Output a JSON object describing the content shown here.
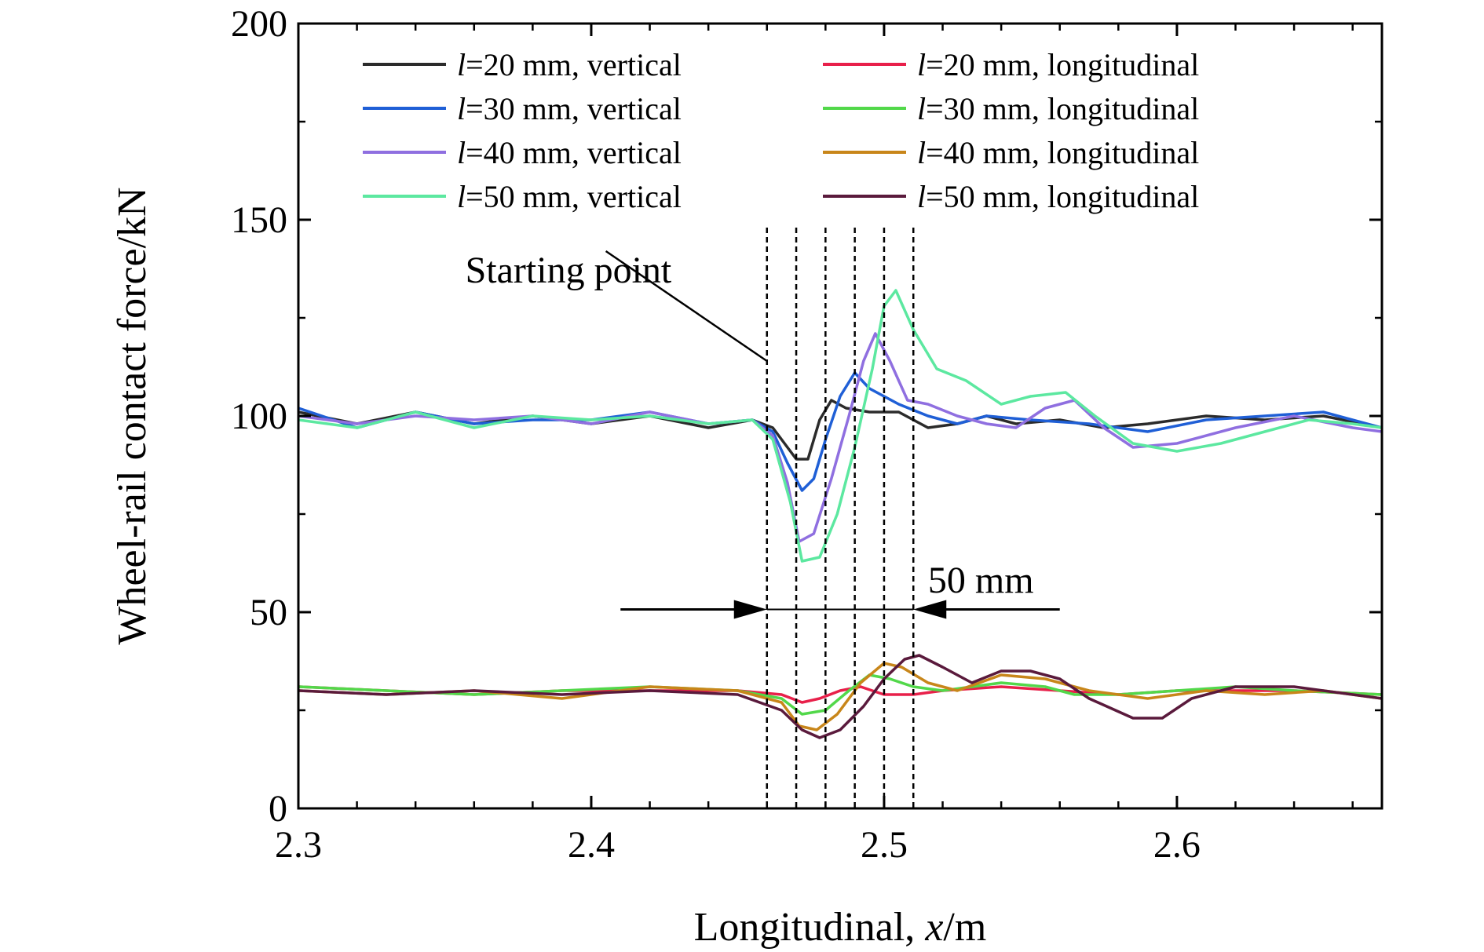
{
  "chart_data": {
    "type": "line",
    "xlabel_prefix": "Longitudinal, ",
    "xlabel_var": "x",
    "xlabel_suffix": "/m",
    "ylabel": "Wheel-rail contact force/kN",
    "xlim": [
      2.3,
      2.67
    ],
    "ylim": [
      0,
      200
    ],
    "xticks": [
      2.3,
      2.4,
      2.5,
      2.6
    ],
    "xtick_labels": [
      "2.3",
      "2.4",
      "2.5",
      "2.6"
    ],
    "yticks": [
      0,
      50,
      100,
      150,
      200
    ],
    "ytick_labels": [
      "0",
      "50",
      "100",
      "150",
      "200"
    ],
    "grid": false,
    "legend_position": "top",
    "series": [
      {
        "name_var": "l",
        "name_rest": "=20 mm, vertical",
        "color": "#2b2b2b",
        "points": [
          [
            2.3,
            101
          ],
          [
            2.32,
            98
          ],
          [
            2.34,
            101
          ],
          [
            2.36,
            98
          ],
          [
            2.38,
            100
          ],
          [
            2.4,
            98
          ],
          [
            2.42,
            100
          ],
          [
            2.44,
            97
          ],
          [
            2.455,
            99
          ],
          [
            2.462,
            97
          ],
          [
            2.467,
            92
          ],
          [
            2.47,
            89
          ],
          [
            2.474,
            89
          ],
          [
            2.478,
            99
          ],
          [
            2.482,
            104
          ],
          [
            2.487,
            102
          ],
          [
            2.495,
            101
          ],
          [
            2.505,
            101
          ],
          [
            2.515,
            97
          ],
          [
            2.525,
            98
          ],
          [
            2.535,
            100
          ],
          [
            2.545,
            98
          ],
          [
            2.56,
            99
          ],
          [
            2.575,
            97
          ],
          [
            2.59,
            98
          ],
          [
            2.61,
            100
          ],
          [
            2.63,
            99
          ],
          [
            2.65,
            100
          ],
          [
            2.67,
            97
          ]
        ]
      },
      {
        "name_var": "l",
        "name_rest": "=30 mm, vertical",
        "color": "#1f5fd6",
        "points": [
          [
            2.3,
            102
          ],
          [
            2.32,
            97
          ],
          [
            2.34,
            101
          ],
          [
            2.36,
            98
          ],
          [
            2.38,
            99
          ],
          [
            2.4,
            99
          ],
          [
            2.42,
            101
          ],
          [
            2.44,
            98
          ],
          [
            2.455,
            99
          ],
          [
            2.462,
            96
          ],
          [
            2.467,
            88
          ],
          [
            2.472,
            81
          ],
          [
            2.476,
            84
          ],
          [
            2.48,
            94
          ],
          [
            2.485,
            105
          ],
          [
            2.49,
            111
          ],
          [
            2.495,
            107
          ],
          [
            2.505,
            103
          ],
          [
            2.515,
            100
          ],
          [
            2.525,
            98
          ],
          [
            2.535,
            100
          ],
          [
            2.55,
            99
          ],
          [
            2.57,
            98
          ],
          [
            2.59,
            96
          ],
          [
            2.61,
            99
          ],
          [
            2.63,
            100
          ],
          [
            2.65,
            101
          ],
          [
            2.67,
            97
          ]
        ]
      },
      {
        "name_var": "l",
        "name_rest": "=40 mm, vertical",
        "color": "#8f6fe0",
        "points": [
          [
            2.3,
            100
          ],
          [
            2.32,
            98
          ],
          [
            2.34,
            100
          ],
          [
            2.36,
            99
          ],
          [
            2.38,
            100
          ],
          [
            2.4,
            98
          ],
          [
            2.42,
            101
          ],
          [
            2.44,
            98
          ],
          [
            2.455,
            99
          ],
          [
            2.462,
            95
          ],
          [
            2.467,
            83
          ],
          [
            2.471,
            68
          ],
          [
            2.476,
            70
          ],
          [
            2.482,
            84
          ],
          [
            2.488,
            100
          ],
          [
            2.493,
            114
          ],
          [
            2.497,
            121
          ],
          [
            2.502,
            114
          ],
          [
            2.508,
            104
          ],
          [
            2.515,
            103
          ],
          [
            2.525,
            100
          ],
          [
            2.535,
            98
          ],
          [
            2.545,
            97
          ],
          [
            2.555,
            102
          ],
          [
            2.565,
            104
          ],
          [
            2.575,
            97
          ],
          [
            2.585,
            92
          ],
          [
            2.6,
            93
          ],
          [
            2.62,
            97
          ],
          [
            2.64,
            100
          ],
          [
            2.66,
            97
          ],
          [
            2.67,
            96
          ]
        ]
      },
      {
        "name_var": "l",
        "name_rest": "=50 mm, vertical",
        "color": "#5ce8a0",
        "points": [
          [
            2.3,
            99
          ],
          [
            2.32,
            97
          ],
          [
            2.34,
            101
          ],
          [
            2.36,
            97
          ],
          [
            2.38,
            100
          ],
          [
            2.4,
            99
          ],
          [
            2.42,
            100
          ],
          [
            2.44,
            98
          ],
          [
            2.455,
            99
          ],
          [
            2.462,
            94
          ],
          [
            2.468,
            78
          ],
          [
            2.472,
            63
          ],
          [
            2.478,
            64
          ],
          [
            2.484,
            75
          ],
          [
            2.49,
            92
          ],
          [
            2.496,
            112
          ],
          [
            2.5,
            128
          ],
          [
            2.504,
            132
          ],
          [
            2.51,
            122
          ],
          [
            2.518,
            112
          ],
          [
            2.528,
            109
          ],
          [
            2.54,
            103
          ],
          [
            2.55,
            105
          ],
          [
            2.562,
            106
          ],
          [
            2.572,
            100
          ],
          [
            2.585,
            93
          ],
          [
            2.6,
            91
          ],
          [
            2.615,
            93
          ],
          [
            2.63,
            96
          ],
          [
            2.645,
            99
          ],
          [
            2.66,
            98
          ],
          [
            2.67,
            97
          ]
        ]
      },
      {
        "name_var": "l",
        "name_rest": "=20 mm, longitudinal",
        "color": "#e8204a",
        "points": [
          [
            2.3,
            31
          ],
          [
            2.33,
            30
          ],
          [
            2.36,
            29
          ],
          [
            2.39,
            30
          ],
          [
            2.42,
            30
          ],
          [
            2.45,
            30
          ],
          [
            2.465,
            29
          ],
          [
            2.472,
            27
          ],
          [
            2.478,
            28
          ],
          [
            2.485,
            30
          ],
          [
            2.492,
            31
          ],
          [
            2.5,
            29
          ],
          [
            2.51,
            29
          ],
          [
            2.52,
            30
          ],
          [
            2.54,
            31
          ],
          [
            2.56,
            30
          ],
          [
            2.58,
            29
          ],
          [
            2.6,
            30
          ],
          [
            2.62,
            30
          ],
          [
            2.64,
            30
          ],
          [
            2.67,
            29
          ]
        ]
      },
      {
        "name_var": "l",
        "name_rest": "=30 mm, longitudinal",
        "color": "#52d84a",
        "points": [
          [
            2.3,
            31
          ],
          [
            2.33,
            30
          ],
          [
            2.36,
            29
          ],
          [
            2.39,
            30
          ],
          [
            2.42,
            31
          ],
          [
            2.45,
            30
          ],
          [
            2.465,
            28
          ],
          [
            2.472,
            24
          ],
          [
            2.48,
            25
          ],
          [
            2.488,
            30
          ],
          [
            2.495,
            34
          ],
          [
            2.502,
            33
          ],
          [
            2.51,
            31
          ],
          [
            2.52,
            30
          ],
          [
            2.54,
            32
          ],
          [
            2.555,
            31
          ],
          [
            2.565,
            29
          ],
          [
            2.58,
            29
          ],
          [
            2.6,
            30
          ],
          [
            2.62,
            31
          ],
          [
            2.64,
            30
          ],
          [
            2.67,
            29
          ]
        ]
      },
      {
        "name_var": "l",
        "name_rest": "=40 mm, longitudinal",
        "color": "#c8861a",
        "points": [
          [
            2.3,
            30
          ],
          [
            2.33,
            29
          ],
          [
            2.36,
            30
          ],
          [
            2.39,
            28
          ],
          [
            2.42,
            31
          ],
          [
            2.45,
            30
          ],
          [
            2.465,
            27
          ],
          [
            2.471,
            21
          ],
          [
            2.477,
            20
          ],
          [
            2.484,
            24
          ],
          [
            2.492,
            32
          ],
          [
            2.5,
            37
          ],
          [
            2.506,
            36
          ],
          [
            2.515,
            32
          ],
          [
            2.525,
            30
          ],
          [
            2.54,
            34
          ],
          [
            2.555,
            33
          ],
          [
            2.57,
            30
          ],
          [
            2.59,
            28
          ],
          [
            2.61,
            30
          ],
          [
            2.63,
            29
          ],
          [
            2.65,
            30
          ],
          [
            2.67,
            28
          ]
        ]
      },
      {
        "name_var": "l",
        "name_rest": "=50 mm, longitudinal",
        "color": "#5a1a3c",
        "points": [
          [
            2.3,
            30
          ],
          [
            2.33,
            29
          ],
          [
            2.36,
            30
          ],
          [
            2.39,
            29
          ],
          [
            2.42,
            30
          ],
          [
            2.45,
            29
          ],
          [
            2.465,
            25
          ],
          [
            2.472,
            20
          ],
          [
            2.478,
            18
          ],
          [
            2.485,
            20
          ],
          [
            2.493,
            26
          ],
          [
            2.5,
            33
          ],
          [
            2.507,
            38
          ],
          [
            2.512,
            39
          ],
          [
            2.52,
            36
          ],
          [
            2.53,
            32
          ],
          [
            2.54,
            35
          ],
          [
            2.55,
            35
          ],
          [
            2.56,
            33
          ],
          [
            2.57,
            28
          ],
          [
            2.585,
            23
          ],
          [
            2.595,
            23
          ],
          [
            2.605,
            28
          ],
          [
            2.62,
            31
          ],
          [
            2.64,
            31
          ],
          [
            2.66,
            29
          ],
          [
            2.67,
            28
          ]
        ]
      }
    ],
    "vlines": [
      2.46,
      2.47,
      2.48,
      2.49,
      2.5,
      2.51
    ],
    "annotations": {
      "starting_point": "Starting point",
      "span_label": "50 mm",
      "span_y": 50.7,
      "span_x": [
        2.46,
        2.51
      ],
      "arrow_tail_left_x": 2.41,
      "arrow_tail_right_x": 2.56,
      "pointer_target": [
        2.46,
        114
      ],
      "pointer_text_anchor": [
        2.405,
        142
      ],
      "starting_point_text_pos": [
        2.357,
        134
      ],
      "span_label_pos": [
        2.515,
        55
      ]
    }
  }
}
